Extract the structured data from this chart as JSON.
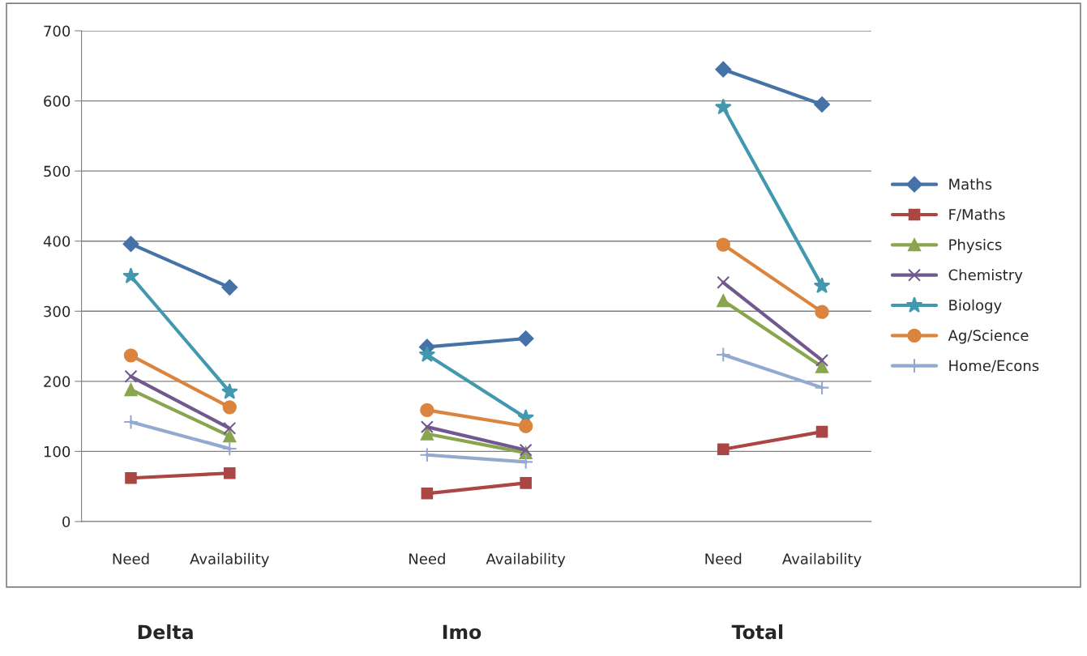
{
  "chart_data": {
    "type": "line",
    "categories": [
      "Need",
      "Availability",
      null,
      "Need",
      "Availability",
      null,
      "Need",
      "Availability"
    ],
    "ylim": [
      0,
      700
    ],
    "yticks": [
      0,
      100,
      200,
      300,
      400,
      500,
      600,
      700
    ],
    "grid": "y",
    "legend": "right",
    "annotations": [
      "Delta",
      "Imo",
      "Total"
    ],
    "series": [
      {
        "name": "Maths",
        "color": "#4572a7",
        "marker": "diamond",
        "values": [
          396,
          334,
          null,
          249,
          261,
          null,
          645,
          595
        ]
      },
      {
        "name": "F/Maths",
        "color": "#aa4643",
        "marker": "square",
        "values": [
          62,
          69,
          null,
          40,
          55,
          null,
          103,
          128
        ]
      },
      {
        "name": "Physics",
        "color": "#89a54e",
        "marker": "triangle",
        "values": [
          188,
          122,
          null,
          125,
          98,
          null,
          315,
          221
        ]
      },
      {
        "name": "Chemistry",
        "color": "#71588f",
        "marker": "cross",
        "values": [
          207,
          133,
          null,
          135,
          102,
          null,
          341,
          230
        ]
      },
      {
        "name": "Biology",
        "color": "#4198af",
        "marker": "star",
        "values": [
          350,
          185,
          null,
          238,
          148,
          null,
          591,
          336
        ]
      },
      {
        "name": "Ag/Science",
        "color": "#db843d",
        "marker": "circle",
        "values": [
          237,
          163,
          null,
          159,
          136,
          null,
          395,
          299
        ]
      },
      {
        "name": "Home/Econs",
        "color": "#93a9cf",
        "marker": "plus",
        "values": [
          142,
          104,
          null,
          95,
          85,
          null,
          238,
          191
        ]
      }
    ]
  }
}
